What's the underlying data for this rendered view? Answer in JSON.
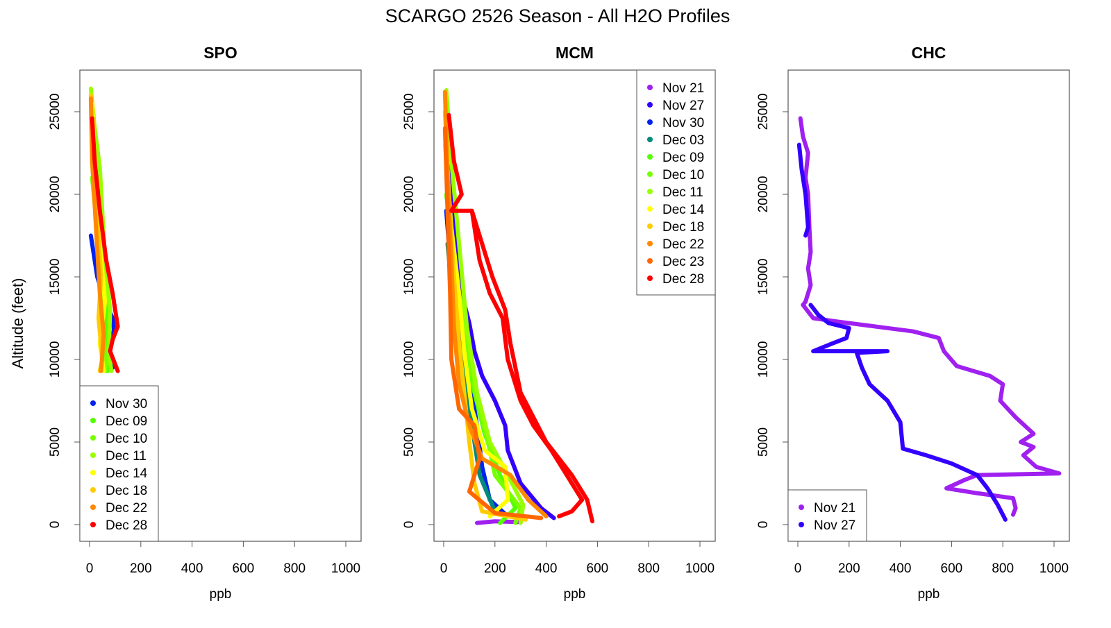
{
  "title": "SCARGO 2526 Season - All H2O Profiles",
  "colors": {
    "Nov 21": "#a020f0",
    "Nov 27": "#3300ff",
    "Nov 30": "#0022ee",
    "Dec 03": "#008b7a",
    "Dec 09": "#55ff00",
    "Dec 10": "#77ff00",
    "Dec 11": "#99ff00",
    "Dec 14": "#ffff00",
    "Dec 18": "#ffcc00",
    "Dec 22": "#ff8800",
    "Dec 23": "#ff6600",
    "Dec 28": "#ff0000"
  },
  "chart_data": [
    {
      "type": "scatter",
      "title": "SPO",
      "xlabel": "ppb",
      "ylabel": "Altitude (feet)",
      "xlim": [
        0,
        1000
      ],
      "ylim": [
        0,
        26000
      ],
      "xticks": [
        0,
        200,
        400,
        600,
        800,
        1000
      ],
      "yticks": [
        0,
        5000,
        10000,
        15000,
        20000,
        25000
      ],
      "legend_position": "bottom-left",
      "legend": [
        "Nov 30",
        "Dec 09",
        "Dec 10",
        "Dec 11",
        "Dec 14",
        "Dec 18",
        "Dec 22",
        "Dec 28"
      ],
      "series": [
        {
          "name": "Nov 30",
          "points": [
            [
              5,
              17500
            ],
            [
              30,
              15000
            ],
            [
              60,
              13500
            ],
            [
              90,
              12500
            ],
            [
              95,
              11800
            ],
            [
              80,
              10500
            ],
            [
              90,
              9500
            ]
          ]
        },
        {
          "name": "Dec 09",
          "points": [
            [
              10,
              22000
            ],
            [
              30,
              18000
            ],
            [
              60,
              15000
            ],
            [
              70,
              13000
            ],
            [
              60,
              11000
            ],
            [
              70,
              9300
            ]
          ]
        },
        {
          "name": "Dec 10",
          "points": [
            [
              10,
              21000
            ],
            [
              35,
              17000
            ],
            [
              55,
              14000
            ],
            [
              50,
              12000
            ],
            [
              65,
              10000
            ],
            [
              60,
              9300
            ]
          ]
        },
        {
          "name": "Dec 11",
          "points": [
            [
              5,
              26400
            ],
            [
              20,
              24000
            ],
            [
              40,
              21600
            ],
            [
              60,
              16000
            ],
            [
              80,
              13000
            ],
            [
              75,
              10500
            ],
            [
              85,
              9300
            ]
          ]
        },
        {
          "name": "Dec 14",
          "points": [
            [
              10,
              25500
            ],
            [
              20,
              22000
            ],
            [
              40,
              17000
            ],
            [
              60,
              13500
            ],
            [
              40,
              11000
            ],
            [
              55,
              9300
            ]
          ]
        },
        {
          "name": "Dec 18",
          "points": [
            [
              5,
              26000
            ],
            [
              15,
              22500
            ],
            [
              30,
              18500
            ],
            [
              45,
              15000
            ],
            [
              35,
              12500
            ],
            [
              50,
              10000
            ],
            [
              40,
              9300
            ]
          ]
        },
        {
          "name": "Dec 22",
          "points": [
            [
              5,
              25800
            ],
            [
              10,
              22000
            ],
            [
              25,
              18000
            ],
            [
              40,
              14000
            ],
            [
              55,
              11500
            ],
            [
              45,
              9300
            ]
          ]
        },
        {
          "name": "Dec 28",
          "points": [
            [
              10,
              24600
            ],
            [
              20,
              22000
            ],
            [
              40,
              19000
            ],
            [
              65,
              16000
            ],
            [
              90,
              14000
            ],
            [
              110,
              12000
            ],
            [
              90,
              11200
            ],
            [
              80,
              10500
            ],
            [
              110,
              9300
            ]
          ]
        }
      ]
    },
    {
      "type": "scatter",
      "title": "MCM",
      "xlabel": "ppb",
      "ylabel": "",
      "xlim": [
        0,
        1000
      ],
      "ylim": [
        0,
        26000
      ],
      "xticks": [
        0,
        200,
        400,
        600,
        800,
        1000
      ],
      "yticks": [
        0,
        5000,
        10000,
        15000,
        20000,
        25000
      ],
      "legend_position": "top-right",
      "legend": [
        "Nov 21",
        "Nov 27",
        "Nov 30",
        "Dec 03",
        "Dec 09",
        "Dec 10",
        "Dec 11",
        "Dec 14",
        "Dec 18",
        "Dec 22",
        "Dec 23",
        "Dec 28"
      ],
      "series": [
        {
          "name": "Nov 21",
          "points": [
            [
              130,
              100
            ],
            [
              200,
              200
            ],
            [
              300,
              150
            ]
          ]
        },
        {
          "name": "Nov 27",
          "points": [
            [
              30,
              21800
            ],
            [
              40,
              19000
            ],
            [
              55,
              16000
            ],
            [
              70,
              14000
            ],
            [
              100,
              12200
            ],
            [
              120,
              10500
            ],
            [
              150,
              9000
            ],
            [
              200,
              7500
            ],
            [
              240,
              6000
            ],
            [
              250,
              4500
            ],
            [
              300,
              2500
            ],
            [
              380,
              1000
            ],
            [
              430,
              400
            ]
          ]
        },
        {
          "name": "Nov 30",
          "points": [
            [
              10,
              19000
            ],
            [
              30,
              15000
            ],
            [
              60,
              12000
            ],
            [
              100,
              9000
            ],
            [
              130,
              6000
            ],
            [
              150,
              3500
            ],
            [
              180,
              1500
            ],
            [
              250,
              500
            ]
          ]
        },
        {
          "name": "Dec 03",
          "points": [
            [
              15,
              17000
            ],
            [
              40,
              13000
            ],
            [
              80,
              9000
            ],
            [
              110,
              6000
            ],
            [
              140,
              3000
            ],
            [
              200,
              800
            ]
          ]
        },
        {
          "name": "Dec 09",
          "points": [
            [
              20,
              19000
            ],
            [
              50,
              15000
            ],
            [
              80,
              11000
            ],
            [
              120,
              8000
            ],
            [
              160,
              5500
            ],
            [
              220,
              3000
            ],
            [
              280,
              1000
            ],
            [
              220,
              100
            ]
          ]
        },
        {
          "name": "Dec 10",
          "points": [
            [
              10,
              20000
            ],
            [
              45,
              15500
            ],
            [
              90,
              11000
            ],
            [
              130,
              7500
            ],
            [
              170,
              5200
            ],
            [
              200,
              3000
            ],
            [
              300,
              1000
            ],
            [
              280,
              100
            ]
          ]
        },
        {
          "name": "Dec 11",
          "points": [
            [
              10,
              26300
            ],
            [
              30,
              22000
            ],
            [
              60,
              17000
            ],
            [
              90,
              12000
            ],
            [
              130,
              8000
            ],
            [
              180,
              5000
            ],
            [
              250,
              3000
            ],
            [
              310,
              1200
            ],
            [
              300,
              100
            ]
          ]
        },
        {
          "name": "Dec 14",
          "points": [
            [
              5,
              23000
            ],
            [
              30,
              18000
            ],
            [
              60,
              14000
            ],
            [
              80,
              10500
            ],
            [
              110,
              7000
            ],
            [
              160,
              4500
            ],
            [
              240,
              3500
            ],
            [
              250,
              1500
            ],
            [
              180,
              500
            ]
          ]
        },
        {
          "name": "Dec 18",
          "points": [
            [
              5,
              25000
            ],
            [
              20,
              20000
            ],
            [
              40,
              15000
            ],
            [
              60,
              11000
            ],
            [
              80,
              8000
            ],
            [
              100,
              5000
            ],
            [
              120,
              2500
            ],
            [
              150,
              800
            ],
            [
              320,
              300
            ]
          ]
        },
        {
          "name": "Dec 22",
          "points": [
            [
              5,
              26200
            ],
            [
              15,
              21000
            ],
            [
              30,
              16000
            ],
            [
              40,
              12000
            ],
            [
              60,
              8500
            ],
            [
              100,
              6000
            ],
            [
              150,
              4000
            ],
            [
              260,
              3000
            ],
            [
              330,
              1500
            ],
            [
              400,
              500
            ]
          ]
        },
        {
          "name": "Dec 23",
          "points": [
            [
              5,
              24000
            ],
            [
              15,
              19000
            ],
            [
              25,
              14000
            ],
            [
              30,
              10000
            ],
            [
              60,
              7000
            ],
            [
              120,
              6000
            ],
            [
              140,
              4000
            ],
            [
              100,
              2000
            ],
            [
              200,
              700
            ],
            [
              380,
              400
            ]
          ]
        },
        {
          "name": "Dec 28",
          "points": [
            [
              20,
              24800
            ],
            [
              40,
              22000
            ],
            [
              70,
              20000
            ],
            [
              30,
              19000
            ],
            [
              110,
              19000
            ],
            [
              150,
              17000
            ],
            [
              190,
              15000
            ],
            [
              240,
              13000
            ],
            [
              260,
              11000
            ],
            [
              300,
              8000
            ],
            [
              400,
              5000
            ],
            [
              500,
              3000
            ],
            [
              560,
              1500
            ],
            [
              580,
              200
            ]
          ]
        },
        {
          "name": "Dec 28",
          "points": [
            [
              110,
              19000
            ],
            [
              140,
              16000
            ],
            [
              180,
              14000
            ],
            [
              230,
              12500
            ],
            [
              250,
              10000
            ],
            [
              300,
              7500
            ],
            [
              350,
              6000
            ],
            [
              420,
              4500
            ],
            [
              480,
              3000
            ],
            [
              540,
              1500
            ],
            [
              500,
              800
            ],
            [
              450,
              500
            ]
          ]
        }
      ]
    },
    {
      "type": "scatter",
      "title": "CHC",
      "xlabel": "ppb",
      "ylabel": "",
      "xlim": [
        0,
        1000
      ],
      "ylim": [
        0,
        26000
      ],
      "xticks": [
        0,
        200,
        400,
        600,
        800,
        1000
      ],
      "yticks": [
        0,
        5000,
        10000,
        15000,
        20000,
        25000
      ],
      "legend_position": "bottom-left",
      "legend": [
        "Nov 21",
        "Nov 27"
      ],
      "series": [
        {
          "name": "Nov 21",
          "points": [
            [
              10,
              24600
            ],
            [
              20,
              23500
            ],
            [
              40,
              22500
            ],
            [
              30,
              21000
            ],
            [
              40,
              20000
            ],
            [
              45,
              18000
            ],
            [
              50,
              16500
            ],
            [
              40,
              15500
            ],
            [
              50,
              14500
            ],
            [
              30,
              13500
            ],
            [
              20,
              13300
            ],
            [
              60,
              12500
            ],
            [
              150,
              12300
            ],
            [
              300,
              12000
            ],
            [
              450,
              11700
            ],
            [
              550,
              11300
            ],
            [
              570,
              10500
            ],
            [
              620,
              9600
            ],
            [
              750,
              9000
            ],
            [
              800,
              8500
            ],
            [
              790,
              7500
            ],
            [
              850,
              6500
            ],
            [
              920,
              5500
            ],
            [
              870,
              5000
            ],
            [
              920,
              4700
            ],
            [
              880,
              4200
            ],
            [
              930,
              3500
            ],
            [
              1020,
              3100
            ],
            [
              700,
              3000
            ],
            [
              650,
              2700
            ],
            [
              580,
              2200
            ],
            [
              700,
              1900
            ],
            [
              840,
              1600
            ],
            [
              850,
              1000
            ],
            [
              840,
              600
            ]
          ]
        },
        {
          "name": "Nov 27",
          "points": [
            [
              5,
              23000
            ],
            [
              15,
              21500
            ],
            [
              30,
              20000
            ],
            [
              40,
              18000
            ],
            [
              30,
              17500
            ]
          ]
        },
        {
          "name": "Nov 27",
          "points": [
            [
              50,
              13300
            ],
            [
              80,
              12700
            ],
            [
              120,
              12200
            ],
            [
              200,
              11900
            ],
            [
              190,
              11300
            ],
            [
              140,
              11000
            ],
            [
              60,
              10500
            ],
            [
              350,
              10500
            ],
            [
              230,
              10400
            ],
            [
              250,
              9500
            ],
            [
              280,
              8500
            ],
            [
              350,
              7500
            ],
            [
              400,
              6200
            ],
            [
              410,
              4600
            ],
            [
              500,
              4200
            ],
            [
              600,
              3700
            ],
            [
              700,
              3000
            ],
            [
              740,
              2200
            ],
            [
              780,
              1200
            ],
            [
              810,
              300
            ]
          ]
        }
      ]
    }
  ]
}
